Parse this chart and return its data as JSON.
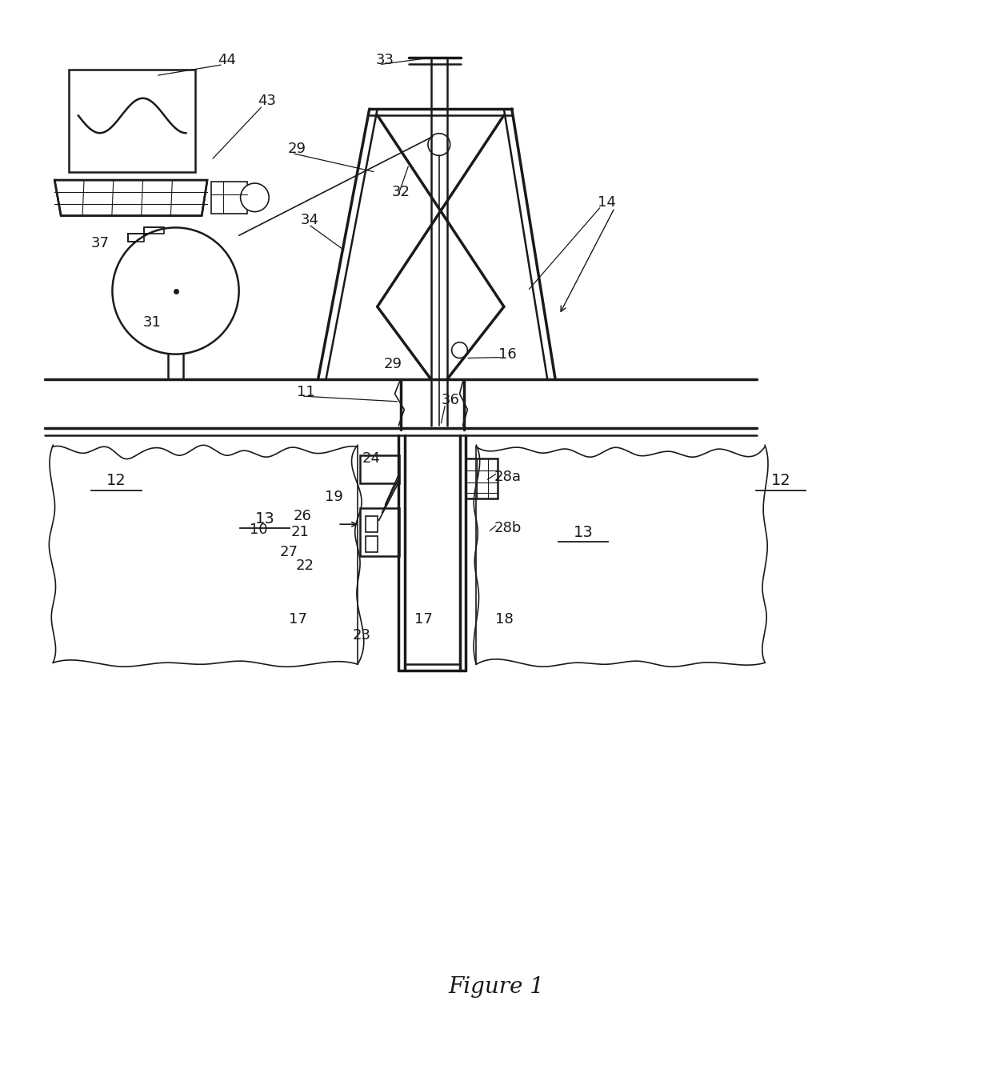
{
  "title": "Figure 1",
  "bg_color": "#ffffff",
  "line_color": "#1a1a1a"
}
